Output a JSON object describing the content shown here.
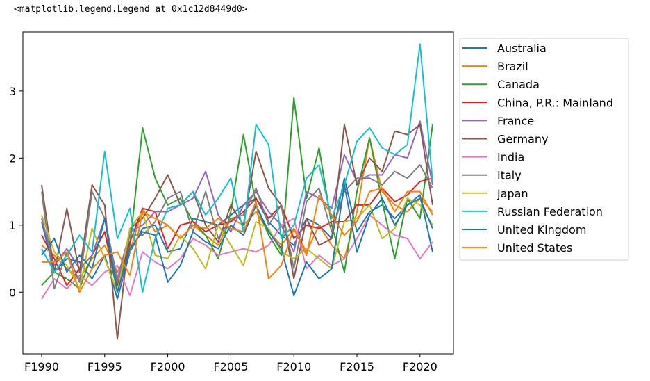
{
  "output_repr": "<matplotlib.legend.Legend at 0x1c12d8449d0>",
  "chart_data": {
    "type": "line",
    "title": "",
    "xlabel": "",
    "ylabel": "",
    "x": [
      "F1990",
      "F1991",
      "F1992",
      "F1993",
      "F1994",
      "F1995",
      "F1996",
      "F1997",
      "F1998",
      "F1999",
      "F2000",
      "F2001",
      "F2002",
      "F2003",
      "F2004",
      "F2005",
      "F2006",
      "F2007",
      "F2008",
      "F2009",
      "F2010",
      "F2011",
      "F2012",
      "F2013",
      "F2014",
      "F2015",
      "F2016",
      "F2017",
      "F2018",
      "F2019",
      "F2020",
      "F2021"
    ],
    "x_tick_labels": [
      "F1990",
      "F1995",
      "F2000",
      "F2005",
      "F2010",
      "F2015",
      "F2020"
    ],
    "x_tick_indices": [
      0,
      5,
      10,
      15,
      20,
      25,
      30
    ],
    "ylim": [
      -0.92,
      3.88
    ],
    "y_ticks": [
      0,
      1,
      2,
      3
    ],
    "y_tick_labels": [
      "0",
      "1",
      "2",
      "3"
    ],
    "grid": false,
    "legend_position": "outside-right",
    "series": [
      {
        "name": "Australia",
        "color": "#1f77b4",
        "values": [
          1.05,
          0.3,
          0.5,
          0.45,
          0.2,
          0.55,
          -0.1,
          0.6,
          0.95,
          1.0,
          0.6,
          0.65,
          1.1,
          1.05,
          1.0,
          1.15,
          1.3,
          1.4,
          1.05,
          0.85,
          0.7,
          1.1,
          1.0,
          0.8,
          1.7,
          0.9,
          1.2,
          1.3,
          1.1,
          1.3,
          1.45,
          0.6
        ]
      },
      {
        "name": "Brazil",
        "color": "#ff7f0e",
        "values": [
          0.7,
          0.55,
          0.35,
          0.2,
          0.5,
          0.7,
          0.3,
          0.6,
          1.25,
          0.9,
          1.0,
          0.8,
          1.0,
          0.85,
          0.7,
          1.1,
          1.0,
          1.2,
          0.9,
          0.7,
          0.95,
          0.6,
          1.0,
          0.7,
          0.5,
          1.2,
          2.3,
          1.5,
          1.3,
          1.2,
          1.4,
          1.2
        ]
      },
      {
        "name": "Canada",
        "color": "#2ca02c",
        "values": [
          0.1,
          0.3,
          0.2,
          0.05,
          0.55,
          0.9,
          0.0,
          0.7,
          2.45,
          1.7,
          1.3,
          1.4,
          1.05,
          0.85,
          0.5,
          1.2,
          2.35,
          1.3,
          0.85,
          0.55,
          2.9,
          1.4,
          2.15,
          1.0,
          0.3,
          1.5,
          2.3,
          1.35,
          0.5,
          1.4,
          1.1,
          2.5
        ]
      },
      {
        "name": "China, P.R.: Mainland",
        "color": "#d62728",
        "values": [
          0.85,
          0.5,
          0.1,
          0.35,
          0.55,
          0.9,
          0.1,
          0.75,
          1.25,
          1.2,
          0.65,
          1.0,
          1.05,
          0.9,
          1.0,
          1.05,
          1.2,
          1.4,
          1.1,
          1.3,
          0.8,
          1.0,
          0.95,
          1.05,
          1.05,
          1.3,
          1.3,
          1.55,
          1.35,
          1.45,
          1.65,
          1.7
        ]
      },
      {
        "name": "France",
        "color": "#9467bd",
        "values": [
          1.1,
          0.4,
          0.65,
          0.35,
          0.55,
          1.1,
          0.2,
          0.9,
          1.0,
          1.2,
          1.2,
          1.3,
          1.4,
          1.8,
          1.15,
          0.9,
          1.3,
          1.5,
          1.2,
          1.0,
          0.6,
          1.5,
          1.4,
          1.25,
          2.05,
          1.65,
          1.75,
          1.75,
          2.05,
          2.0,
          2.55,
          1.6
        ]
      },
      {
        "name": "Germany",
        "color": "#8c564b",
        "values": [
          1.6,
          0.3,
          1.25,
          0.3,
          1.6,
          1.3,
          -0.7,
          0.95,
          1.1,
          1.4,
          1.75,
          1.3,
          1.5,
          1.0,
          0.75,
          1.3,
          1.0,
          2.1,
          1.55,
          1.3,
          0.2,
          1.1,
          0.7,
          0.8,
          2.5,
          1.6,
          2.0,
          1.8,
          2.4,
          2.35,
          2.5,
          1.3
        ]
      },
      {
        "name": "India",
        "color": "#e377c2",
        "values": [
          -0.1,
          0.2,
          0.05,
          0.25,
          0.1,
          0.3,
          0.4,
          -0.05,
          0.6,
          0.45,
          0.35,
          0.5,
          0.8,
          0.7,
          0.55,
          0.6,
          0.65,
          0.6,
          0.7,
          1.0,
          1.1,
          0.35,
          0.55,
          0.4,
          0.5,
          0.8,
          1.15,
          1.0,
          0.85,
          0.8,
          0.5,
          0.75
        ]
      },
      {
        "name": "Italy",
        "color": "#7f7f7f",
        "values": [
          1.5,
          0.05,
          0.6,
          0.15,
          1.5,
          1.1,
          0.15,
          0.85,
          0.85,
          1.05,
          1.4,
          1.5,
          0.9,
          1.5,
          0.8,
          1.1,
          1.15,
          1.55,
          1.0,
          1.3,
          0.35,
          1.35,
          1.55,
          0.9,
          1.5,
          1.7,
          1.7,
          1.6,
          1.8,
          1.7,
          1.9,
          1.55
        ]
      },
      {
        "name": "Japan",
        "color": "#bcbd22",
        "values": [
          1.15,
          0.6,
          0.4,
          0.05,
          0.95,
          0.5,
          0.0,
          0.95,
          1.2,
          0.55,
          0.5,
          0.85,
          0.65,
          0.35,
          1.0,
          0.7,
          0.4,
          1.05,
          0.95,
          0.6,
          0.5,
          0.65,
          0.5,
          0.35,
          1.05,
          1.1,
          1.3,
          0.8,
          0.95,
          1.4,
          1.3,
          1.0
        ]
      },
      {
        "name": "Russian Federation",
        "color": "#17becf",
        "values": [
          0.65,
          0.3,
          0.55,
          0.85,
          0.6,
          2.1,
          0.8,
          1.25,
          0.0,
          0.8,
          1.25,
          1.3,
          1.5,
          1.15,
          1.4,
          1.7,
          0.9,
          2.5,
          2.2,
          0.8,
          1.0,
          1.7,
          1.9,
          1.1,
          1.6,
          2.25,
          2.45,
          2.15,
          2.05,
          2.2,
          3.7,
          1.65
        ]
      },
      {
        "name": "United Kingdom",
        "color": "#1f77b4",
        "values": [
          0.55,
          0.8,
          0.3,
          0.55,
          0.35,
          1.1,
          0.0,
          0.65,
          0.9,
          0.85,
          0.15,
          0.4,
          0.9,
          0.75,
          0.65,
          1.0,
          0.85,
          1.3,
          0.9,
          0.65,
          -0.05,
          0.45,
          0.2,
          0.35,
          1.6,
          0.6,
          1.15,
          1.4,
          1.0,
          1.3,
          1.4,
          0.95
        ]
      },
      {
        "name": "United States",
        "color": "#ff7f0e",
        "values": [
          0.45,
          0.45,
          0.6,
          0.0,
          0.35,
          0.55,
          0.6,
          0.25,
          1.2,
          1.1,
          1.0,
          0.8,
          1.0,
          0.95,
          1.1,
          0.95,
          0.9,
          1.35,
          0.2,
          0.4,
          0.95,
          0.55,
          1.45,
          1.15,
          0.85,
          1.05,
          1.5,
          1.55,
          1.2,
          1.5,
          1.5,
          1.15
        ]
      }
    ]
  }
}
